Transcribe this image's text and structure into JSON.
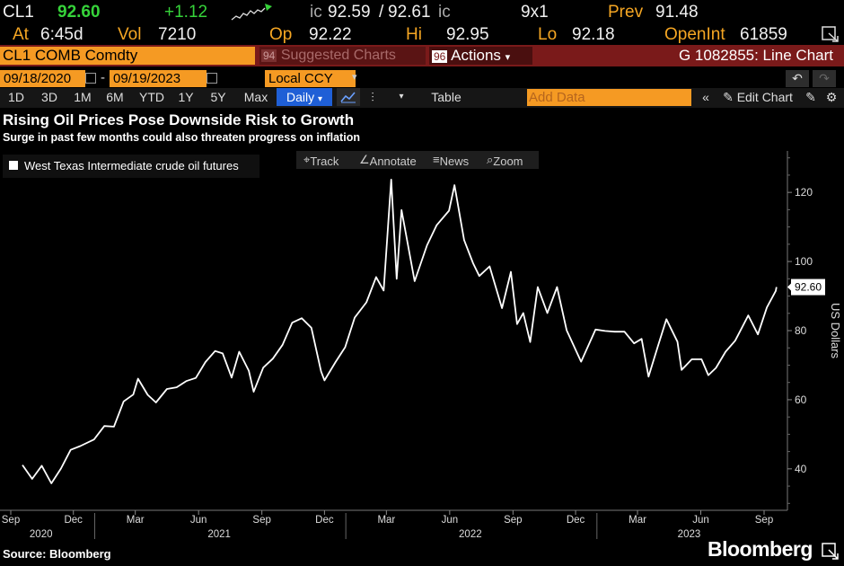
{
  "quote": {
    "ticker": "CL1",
    "last": "92.60",
    "change": "+1.12",
    "bid_label": "ic",
    "bid": "92.59",
    "sep": "/",
    "ask": "92.61",
    "ask_suffix": "ic",
    "size": "9x1",
    "prev_label": "Prev",
    "prev": "91.48",
    "at_label": "At",
    "at": "6:45d",
    "vol_label": "Vol",
    "vol": "7210",
    "op_label": "Op",
    "op": "92.22",
    "hi_label": "Hi",
    "hi": "92.95",
    "lo_label": "Lo",
    "lo": "92.18",
    "oi_label": "OpenInt",
    "oi": "61859"
  },
  "toolbar": {
    "security": "CL1 COMB Comdty",
    "suggested_num": "94",
    "suggested": "Suggested Charts",
    "actions_num": "96",
    "actions": "Actions",
    "chart_id": "G 1082855: Line Chart",
    "start_date": "09/18/2020",
    "dash": "-",
    "end_date": "09/19/2023",
    "currency": "Local CCY",
    "periods": [
      "1D",
      "3D",
      "1M",
      "6M",
      "YTD",
      "1Y",
      "5Y",
      "Max"
    ],
    "frequency": "Daily",
    "table": "Table",
    "add_data_placeholder": "Add Data",
    "edit_chart": "Edit Chart"
  },
  "tools": {
    "track": "Track",
    "annotate": "Annotate",
    "news": "News",
    "zoom": "Zoom"
  },
  "colors": {
    "amber": "#f5a623",
    "green": "#36d33a",
    "background": "#000000",
    "line": "#ffffff",
    "header_bar": "#7a1a1a",
    "selected": "#1f5fd6"
  },
  "icons": [
    "sparkline-icon",
    "export-icon",
    "undo-icon",
    "redo-icon",
    "line-chart-icon",
    "candlestick-icon",
    "chevron-left-icon",
    "pencil-icon",
    "gear-icon",
    "bloomberg-logo-icon"
  ],
  "footer": {
    "source": "Source: Bloomberg",
    "logo": "Bloomberg"
  },
  "chart_data": {
    "type": "line",
    "title": "Rising Oil Prices Pose Downside Risk to Growth",
    "subtitle": "Surge in past few months could also threaten progress on inflation",
    "ylabel": "US Dollars",
    "ylim": [
      28,
      132
    ],
    "yticks": [
      40,
      60,
      80,
      100,
      120
    ],
    "x_tick_labels": [
      "Sep",
      "Dec",
      "Mar",
      "Jun",
      "Sep",
      "Dec",
      "Mar",
      "Jun",
      "Sep",
      "Dec",
      "Mar",
      "Jun",
      "Sep"
    ],
    "x_tick_dates": [
      "2020-09-01",
      "2020-12-01",
      "2021-03-01",
      "2021-06-01",
      "2021-09-01",
      "2021-12-01",
      "2022-03-01",
      "2022-06-01",
      "2022-09-01",
      "2022-12-01",
      "2023-03-01",
      "2023-06-01",
      "2023-09-01"
    ],
    "year_labels": [
      "2020",
      "2021",
      "2022",
      "2023"
    ],
    "year_label_dates": [
      "2020-10-15",
      "2021-07-01",
      "2022-07-01",
      "2023-05-15"
    ],
    "legend_position": "top-left",
    "last_value_label": "92.60",
    "series": [
      {
        "name": "West Texas Intermediate crude oil futures",
        "points": [
          [
            "2020-09-18",
            41.1
          ],
          [
            "2020-10-02",
            37.1
          ],
          [
            "2020-10-16",
            40.9
          ],
          [
            "2020-10-30",
            35.8
          ],
          [
            "2020-11-13",
            40.1
          ],
          [
            "2020-11-27",
            45.5
          ],
          [
            "2020-12-11",
            46.6
          ],
          [
            "2020-12-31",
            48.5
          ],
          [
            "2021-01-15",
            52.4
          ],
          [
            "2021-01-29",
            52.2
          ],
          [
            "2021-02-12",
            59.5
          ],
          [
            "2021-02-26",
            61.5
          ],
          [
            "2021-03-05",
            66.1
          ],
          [
            "2021-03-19",
            61.4
          ],
          [
            "2021-03-31",
            59.2
          ],
          [
            "2021-04-16",
            63.1
          ],
          [
            "2021-04-30",
            63.6
          ],
          [
            "2021-05-14",
            65.4
          ],
          [
            "2021-05-28",
            66.3
          ],
          [
            "2021-06-11",
            70.9
          ],
          [
            "2021-06-25",
            74.1
          ],
          [
            "2021-07-06",
            73.4
          ],
          [
            "2021-07-19",
            66.4
          ],
          [
            "2021-07-30",
            73.9
          ],
          [
            "2021-08-13",
            68.4
          ],
          [
            "2021-08-20",
            62.3
          ],
          [
            "2021-09-03",
            69.3
          ],
          [
            "2021-09-17",
            71.9
          ],
          [
            "2021-10-01",
            75.9
          ],
          [
            "2021-10-15",
            82.3
          ],
          [
            "2021-10-29",
            83.6
          ],
          [
            "2021-11-12",
            80.8
          ],
          [
            "2021-11-26",
            68.2
          ],
          [
            "2021-12-01",
            65.6
          ],
          [
            "2021-12-17",
            70.9
          ],
          [
            "2021-12-31",
            75.2
          ],
          [
            "2022-01-14",
            83.8
          ],
          [
            "2022-01-31",
            88.2
          ],
          [
            "2022-02-14",
            95.5
          ],
          [
            "2022-02-25",
            91.6
          ],
          [
            "2022-03-08",
            123.7
          ],
          [
            "2022-03-16",
            95.0
          ],
          [
            "2022-03-23",
            114.9
          ],
          [
            "2022-04-11",
            94.3
          ],
          [
            "2022-04-29",
            104.7
          ],
          [
            "2022-05-13",
            110.5
          ],
          [
            "2022-05-31",
            114.7
          ],
          [
            "2022-06-08",
            122.1
          ],
          [
            "2022-06-22",
            106.2
          ],
          [
            "2022-07-05",
            99.5
          ],
          [
            "2022-07-14",
            95.8
          ],
          [
            "2022-07-29",
            98.6
          ],
          [
            "2022-08-16",
            86.5
          ],
          [
            "2022-08-29",
            97.0
          ],
          [
            "2022-09-07",
            81.9
          ],
          [
            "2022-09-16",
            85.1
          ],
          [
            "2022-09-26",
            76.7
          ],
          [
            "2022-10-07",
            92.6
          ],
          [
            "2022-10-21",
            85.1
          ],
          [
            "2022-11-04",
            92.6
          ],
          [
            "2022-11-18",
            80.1
          ],
          [
            "2022-12-09",
            71.0
          ],
          [
            "2022-12-30",
            80.3
          ],
          [
            "2023-01-13",
            79.9
          ],
          [
            "2023-01-27",
            79.7
          ],
          [
            "2023-02-10",
            79.7
          ],
          [
            "2023-02-24",
            76.3
          ],
          [
            "2023-03-07",
            77.6
          ],
          [
            "2023-03-17",
            66.7
          ],
          [
            "2023-03-31",
            75.7
          ],
          [
            "2023-04-12",
            83.3
          ],
          [
            "2023-04-28",
            76.8
          ],
          [
            "2023-05-04",
            68.6
          ],
          [
            "2023-05-19",
            71.7
          ],
          [
            "2023-06-02",
            71.7
          ],
          [
            "2023-06-12",
            67.1
          ],
          [
            "2023-06-23",
            69.2
          ],
          [
            "2023-07-07",
            73.9
          ],
          [
            "2023-07-21",
            77.1
          ],
          [
            "2023-08-09",
            84.4
          ],
          [
            "2023-08-23",
            78.9
          ],
          [
            "2023-09-05",
            86.7
          ],
          [
            "2023-09-18",
            91.5
          ],
          [
            "2023-09-19",
            92.6
          ]
        ]
      }
    ]
  }
}
